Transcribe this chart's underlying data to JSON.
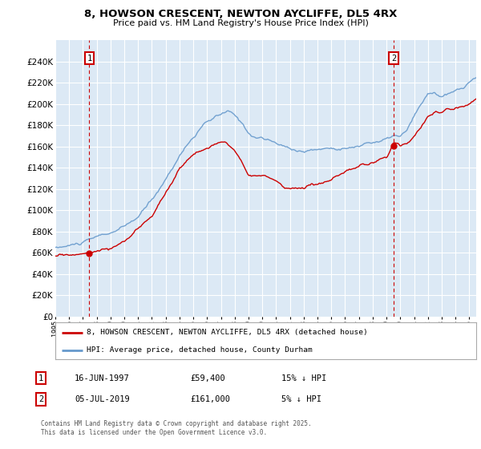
{
  "title": "8, HOWSON CRESCENT, NEWTON AYCLIFFE, DL5 4RX",
  "subtitle": "Price paid vs. HM Land Registry's House Price Index (HPI)",
  "ylim": [
    0,
    260000
  ],
  "yticks": [
    0,
    20000,
    40000,
    60000,
    80000,
    100000,
    120000,
    140000,
    160000,
    180000,
    200000,
    220000,
    240000
  ],
  "ytick_labels": [
    "£0",
    "£20K",
    "£40K",
    "£60K",
    "£80K",
    "£100K",
    "£120K",
    "£140K",
    "£160K",
    "£180K",
    "£200K",
    "£220K",
    "£240K"
  ],
  "bg_color": "#dce9f5",
  "fig_bg_color": "#ffffff",
  "grid_color": "#ffffff",
  "red_line_color": "#cc0000",
  "blue_line_color": "#6699cc",
  "marker1_year": 1997.46,
  "marker1_value": 59400,
  "marker2_year": 2019.51,
  "marker2_value": 161000,
  "legend_label_red": "8, HOWSON CRESCENT, NEWTON AYCLIFFE, DL5 4RX (detached house)",
  "legend_label_blue": "HPI: Average price, detached house, County Durham",
  "annotation1_date": "16-JUN-1997",
  "annotation1_price": "£59,400",
  "annotation1_hpi": "15% ↓ HPI",
  "annotation2_date": "05-JUL-2019",
  "annotation2_price": "£161,000",
  "annotation2_hpi": "5% ↓ HPI",
  "footer": "Contains HM Land Registry data © Crown copyright and database right 2025.\nThis data is licensed under the Open Government Licence v3.0.",
  "xmin": 1995.0,
  "xmax": 2025.5
}
